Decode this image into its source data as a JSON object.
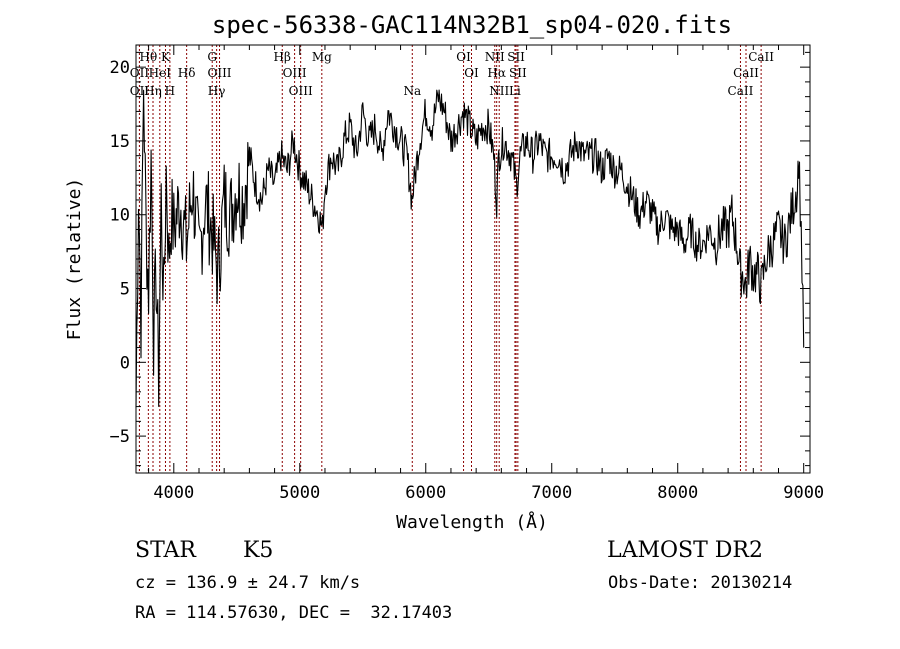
{
  "chart_data": {
    "type": "line",
    "title": "spec-56338-GAC114N32B1_sp04-020.fits",
    "xlabel": "Wavelength (Å)",
    "ylabel": "Flux (relative)",
    "xlim": [
      3700,
      9050
    ],
    "ylim": [
      -7.5,
      21.5
    ],
    "xticks": [
      4000,
      5000,
      6000,
      7000,
      8000,
      9000
    ],
    "yticks": [
      -5,
      0,
      5,
      10,
      15,
      20
    ],
    "grid": false,
    "colors": {
      "spectrum": "#000000",
      "lines": "#8b0000",
      "axes": "#000000"
    },
    "series": [
      {
        "x": [
          3700,
          3720,
          3740,
          3760,
          3780,
          3800,
          3820,
          3840,
          3860,
          3880,
          3900,
          3920,
          3940,
          3960,
          3980,
          4000,
          4050,
          4100,
          4150,
          4200,
          4250,
          4300,
          4350,
          4400,
          4450,
          4500,
          4550,
          4600,
          4650,
          4700,
          4750,
          4800,
          4850,
          4900,
          4950,
          5000,
          5050,
          5100,
          5150,
          5180,
          5200,
          5250,
          5300,
          5350,
          5400,
          5450,
          5500,
          5550,
          5600,
          5650,
          5700,
          5750,
          5800,
          5850,
          5890,
          5920,
          5950,
          6000,
          6050,
          6100,
          6150,
          6200,
          6250,
          6300,
          6350,
          6400,
          6450,
          6500,
          6540,
          6563,
          6580,
          6620,
          6680,
          6720,
          6750,
          6800,
          6850,
          6900,
          6950,
          7000,
          7050,
          7100,
          7150,
          7200,
          7250,
          7300,
          7350,
          7400,
          7450,
          7500,
          7550,
          7600,
          7650,
          7700,
          7750,
          7800,
          7850,
          7900,
          7950,
          8000,
          8050,
          8100,
          8150,
          8200,
          8250,
          8300,
          8350,
          8400,
          8430,
          8470,
          8498,
          8520,
          8542,
          8570,
          8600,
          8640,
          8662,
          8700,
          8750,
          8800,
          8850,
          8900,
          8950,
          8960,
          8980,
          9000
        ],
        "y": [
          -3,
          12,
          3,
          19,
          9,
          5,
          14,
          2,
          6,
          -1,
          11,
          4,
          13,
          7,
          10,
          9,
          11,
          8,
          12,
          7,
          11,
          9,
          6,
          11,
          10,
          12,
          11,
          14,
          12,
          11,
          13,
          12,
          14,
          13,
          15,
          13,
          12,
          11,
          10,
          9,
          12,
          14,
          13,
          15,
          16,
          14,
          17,
          15,
          16,
          14,
          17,
          16,
          15,
          14,
          11,
          13,
          15,
          17,
          16,
          18,
          17,
          15,
          16,
          17,
          16,
          15,
          16,
          16,
          14,
          11,
          14,
          15,
          14,
          12,
          14,
          15,
          14,
          15,
          14,
          14,
          14,
          13,
          14,
          15,
          14,
          14,
          14,
          13,
          14,
          13,
          13,
          12,
          11,
          10,
          11,
          10,
          9,
          10,
          9,
          9,
          8,
          9,
          8,
          8,
          9,
          8,
          9,
          9,
          10,
          8,
          6,
          6,
          5,
          7,
          6,
          6,
          5,
          7,
          8,
          9,
          8,
          10,
          12,
          14,
          9,
          1
        ]
      }
    ],
    "line_ids": [
      {
        "label": "Hθ",
        "x": 3798,
        "row": 0
      },
      {
        "label": "K",
        "x": 3934,
        "row": 0
      },
      {
        "label": "G",
        "x": 4305,
        "row": 0
      },
      {
        "label": "Hβ",
        "x": 4861,
        "row": 0
      },
      {
        "label": "Mg",
        "x": 5175,
        "row": 0
      },
      {
        "label": "OI",
        "x": 6300,
        "row": 0
      },
      {
        "label": "NII",
        "x": 6548,
        "row": 0
      },
      {
        "label": "SII",
        "x": 6717,
        "row": 0
      },
      {
        "label": "CaII",
        "x": 8662,
        "row": 0
      },
      {
        "label": "OII",
        "x": 3727,
        "row": 1
      },
      {
        "label": "HeI",
        "x": 3889,
        "row": 1
      },
      {
        "label": "Hδ",
        "x": 4102,
        "row": 1
      },
      {
        "label": "OIII",
        "x": 4363,
        "row": 1
      },
      {
        "label": "OIII",
        "x": 4959,
        "row": 1
      },
      {
        "label": "OI",
        "x": 6363,
        "row": 1
      },
      {
        "label": "Hα",
        "x": 6563,
        "row": 1
      },
      {
        "label": "SII",
        "x": 6731,
        "row": 1
      },
      {
        "label": "CaII",
        "x": 8542,
        "row": 1
      },
      {
        "label": "OII",
        "x": 3727,
        "row": 2
      },
      {
        "label": "Hη",
        "x": 3835,
        "row": 2
      },
      {
        "label": "H",
        "x": 3969,
        "row": 2
      },
      {
        "label": "Hγ",
        "x": 4340,
        "row": 2
      },
      {
        "label": "OIII",
        "x": 5007,
        "row": 2
      },
      {
        "label": "Na",
        "x": 5893,
        "row": 2
      },
      {
        "label": "NII",
        "x": 6583,
        "row": 2
      },
      {
        "label": "Li",
        "x": 6708,
        "row": 2
      },
      {
        "label": "CaII",
        "x": 8498,
        "row": 2
      }
    ]
  },
  "info": {
    "object_class": "STAR",
    "subclass": "K5",
    "survey": "LAMOST DR2",
    "redshift": "cz = 136.9 ± 24.7 km/s",
    "obs_date": "Obs-Date: 20130214",
    "coords": "RA = 114.57630, DEC =  32.17403"
  }
}
